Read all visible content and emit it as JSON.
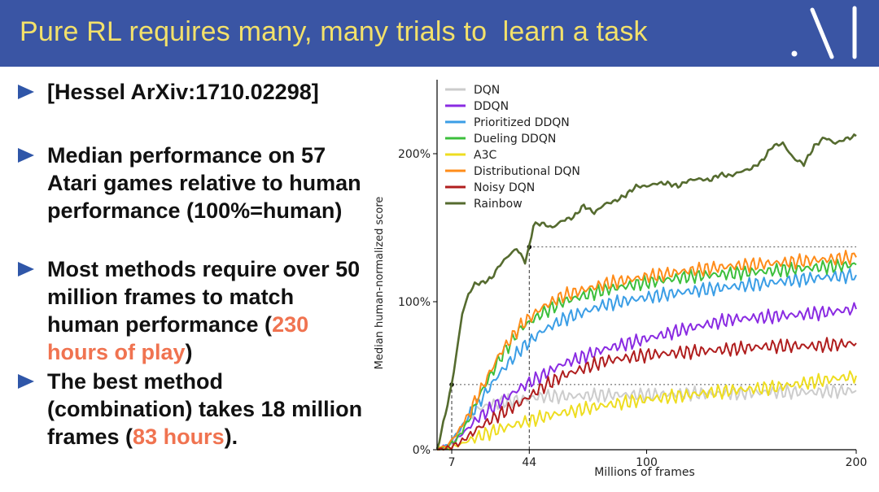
{
  "slide": {
    "title": "Pure RL requires many, many trials to  learn a task",
    "bullets": [
      {
        "parts": [
          {
            "text": "[Hessel ArXiv:1710.02298]"
          }
        ]
      },
      {
        "parts": [
          {
            "text": "Median performance on 57 Atari games relative to human performance (100%=human)"
          }
        ]
      },
      {
        "parts": [
          {
            "text": "Most methods require over 50 million frames to match human performance ("
          },
          {
            "text": "230 hours of play",
            "highlight": true
          },
          {
            "text": ")"
          }
        ]
      },
      {
        "parts": [
          {
            "text": "The best method (combination) takes 18 million frames ("
          },
          {
            "text": "83 hours",
            "highlight": true
          },
          {
            "text": ")."
          }
        ]
      }
    ],
    "logo": {
      "icon": "lab-logo-icon",
      "color": "#ffffff"
    },
    "colors": {
      "title_bg": "#3a55a4",
      "title_text": "#f3e16a",
      "bullet_marker": "#2f56a8",
      "highlight": "#f07350"
    }
  },
  "chart_data": {
    "type": "line",
    "title": "",
    "xlabel": "Millions of frames",
    "ylabel": "Median human-normalized score",
    "xlim": [
      0,
      200
    ],
    "ylim": [
      0,
      250
    ],
    "xticks": [
      7,
      44,
      100,
      200
    ],
    "yticks": [
      {
        "value": 0,
        "label": "0%"
      },
      {
        "value": 100,
        "label": "100%"
      },
      {
        "value": 200,
        "label": "200%"
      }
    ],
    "grid": false,
    "legend_position": "top-left",
    "reference_lines": [
      {
        "x": 7,
        "y": 44
      },
      {
        "x": 44,
        "y": 137
      }
    ],
    "series": [
      {
        "name": "DQN",
        "color": "#cccccc",
        "x": [
          0,
          5,
          10,
          15,
          20,
          30,
          40,
          50,
          60,
          80,
          100,
          120,
          140,
          160,
          180,
          200
        ],
        "y": [
          0,
          2,
          10,
          22,
          28,
          32,
          34,
          36,
          36,
          37,
          37,
          38,
          38,
          39,
          39,
          40
        ]
      },
      {
        "name": "DDQN",
        "color": "#8a2be2",
        "x": [
          0,
          5,
          10,
          15,
          20,
          30,
          40,
          50,
          60,
          80,
          100,
          120,
          140,
          160,
          180,
          200
        ],
        "y": [
          0,
          2,
          8,
          15,
          22,
          32,
          42,
          50,
          58,
          68,
          75,
          82,
          88,
          90,
          92,
          95
        ]
      },
      {
        "name": "Prioritized DDQN",
        "color": "#3b9ee6",
        "x": [
          0,
          5,
          10,
          15,
          20,
          30,
          40,
          50,
          60,
          80,
          100,
          120,
          140,
          160,
          180,
          200
        ],
        "y": [
          0,
          3,
          12,
          22,
          32,
          52,
          68,
          80,
          88,
          98,
          103,
          107,
          110,
          113,
          116,
          118
        ]
      },
      {
        "name": "Dueling DDQN",
        "color": "#3cbf3c",
        "x": [
          0,
          5,
          10,
          15,
          20,
          30,
          40,
          50,
          60,
          80,
          100,
          120,
          140,
          160,
          180,
          200
        ],
        "y": [
          0,
          2,
          8,
          20,
          36,
          62,
          82,
          92,
          100,
          108,
          113,
          117,
          119,
          121,
          123,
          125
        ]
      },
      {
        "name": "A3C",
        "color": "#eedd20",
        "x": [
          0,
          5,
          10,
          15,
          20,
          30,
          40,
          50,
          60,
          80,
          100,
          120,
          140,
          160,
          180,
          200
        ],
        "y": [
          0,
          1,
          3,
          6,
          9,
          14,
          18,
          22,
          25,
          30,
          34,
          37,
          40,
          42,
          46,
          50
        ]
      },
      {
        "name": "Distributional DQN",
        "color": "#ff8c1a",
        "x": [
          0,
          5,
          10,
          15,
          20,
          30,
          40,
          50,
          60,
          80,
          100,
          120,
          140,
          160,
          180,
          200
        ],
        "y": [
          0,
          3,
          12,
          24,
          38,
          65,
          84,
          96,
          104,
          112,
          117,
          121,
          124,
          126,
          128,
          130
        ]
      },
      {
        "name": "Noisy DQN",
        "color": "#b01e1e",
        "x": [
          0,
          5,
          10,
          15,
          20,
          30,
          40,
          50,
          60,
          80,
          100,
          120,
          140,
          160,
          180,
          200
        ],
        "y": [
          0,
          1,
          4,
          9,
          15,
          24,
          32,
          42,
          50,
          60,
          64,
          66,
          68,
          70,
          70,
          72
        ]
      },
      {
        "name": "Rainbow",
        "color": "#556b2f",
        "x": [
          0,
          3,
          7,
          10,
          12,
          15,
          18,
          22,
          26,
          30,
          34,
          38,
          42,
          44,
          46,
          50,
          55,
          60,
          65,
          70,
          75,
          80,
          85,
          90,
          95,
          100,
          105,
          110,
          115,
          120,
          125,
          130,
          135,
          140,
          145,
          150,
          155,
          160,
          165,
          170,
          175,
          180,
          185,
          190,
          195,
          200
        ],
        "y": [
          0,
          18,
          44,
          72,
          92,
          105,
          112,
          113,
          116,
          125,
          131,
          136,
          127,
          137,
          152,
          153,
          150,
          155,
          157,
          165,
          160,
          166,
          168,
          172,
          178,
          178,
          180,
          180,
          178,
          182,
          183,
          182,
          186,
          185,
          188,
          190,
          195,
          205,
          207,
          197,
          193,
          205,
          211,
          207,
          210,
          212
        ]
      }
    ]
  }
}
